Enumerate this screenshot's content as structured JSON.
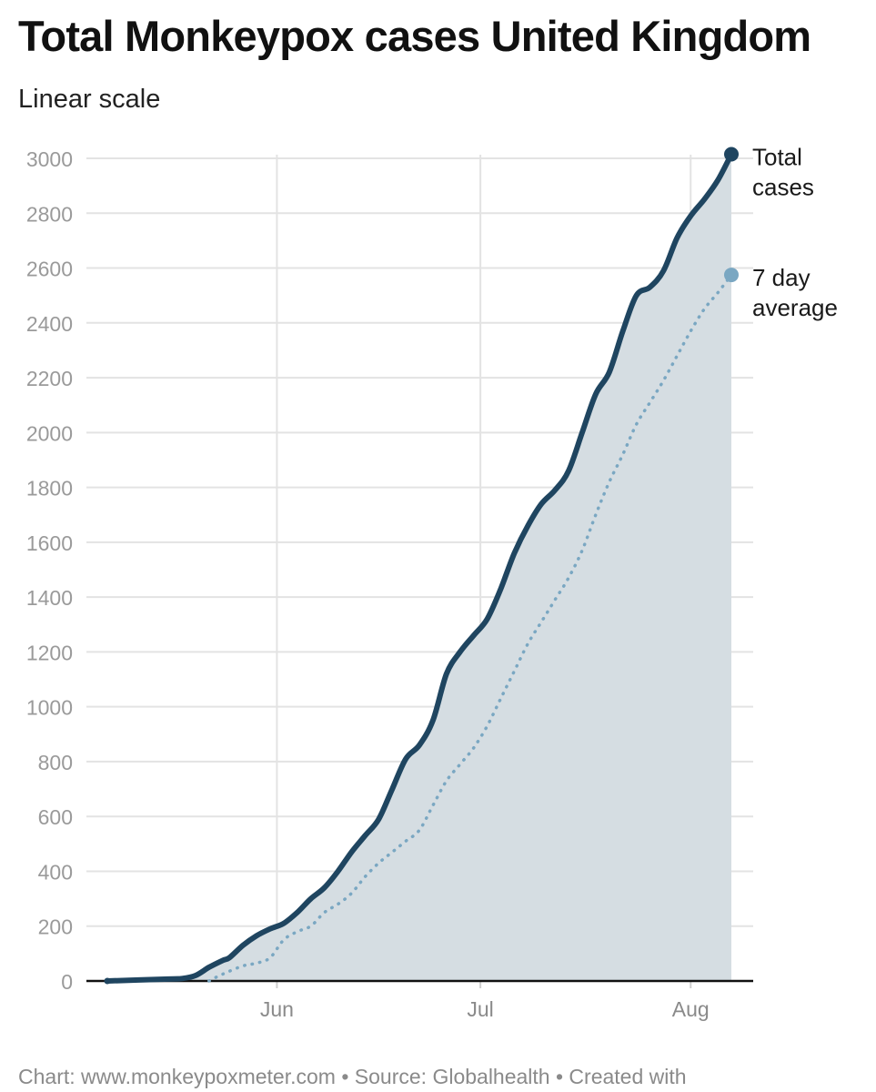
{
  "header": {
    "title": "Total Monkeypox cases United Kingdom",
    "subtitle": "Linear scale"
  },
  "footer": {
    "credit": "Chart: www.monkeypoxmeter.com • Source: Globalhealth • Created with"
  },
  "colors": {
    "total_line": "#1f4560",
    "average_line": "#7aa7c2",
    "area_fill": "#d5dde2",
    "grid": "#e3e3e3",
    "axis": "#111111"
  },
  "chart_data": {
    "type": "area",
    "title": "Total Monkeypox cases United Kingdom",
    "subtitle": "Linear scale",
    "x_axis": {
      "type": "date",
      "range": [
        "2022-05-07",
        "2022-08-12"
      ],
      "ticks": [
        {
          "date": "2022-06-01",
          "label": "Jun"
        },
        {
          "date": "2022-07-01",
          "label": "Jul"
        },
        {
          "date": "2022-08-01",
          "label": "Aug"
        }
      ]
    },
    "y_axis": {
      "range": [
        0,
        3000
      ],
      "ticks": [
        0,
        200,
        400,
        600,
        800,
        1000,
        1200,
        1400,
        1600,
        1800,
        2000,
        2200,
        2400,
        2600,
        2800,
        3000
      ]
    },
    "grid": true,
    "series": [
      {
        "name": "Total cases",
        "label_lines": [
          "Total",
          "cases"
        ],
        "style": "solid",
        "filled": true,
        "points": [
          [
            "2022-05-07",
            0
          ],
          [
            "2022-05-16",
            7
          ],
          [
            "2022-05-18",
            9
          ],
          [
            "2022-05-20",
            20
          ],
          [
            "2022-05-22",
            50
          ],
          [
            "2022-05-24",
            75
          ],
          [
            "2022-05-25",
            85
          ],
          [
            "2022-05-27",
            130
          ],
          [
            "2022-05-29",
            165
          ],
          [
            "2022-05-31",
            190
          ],
          [
            "2022-06-02",
            210
          ],
          [
            "2022-06-04",
            250
          ],
          [
            "2022-06-06",
            300
          ],
          [
            "2022-06-08",
            340
          ],
          [
            "2022-06-10",
            400
          ],
          [
            "2022-06-12",
            470
          ],
          [
            "2022-06-14",
            530
          ],
          [
            "2022-06-16",
            590
          ],
          [
            "2022-06-18",
            700
          ],
          [
            "2022-06-20",
            810
          ],
          [
            "2022-06-22",
            860
          ],
          [
            "2022-06-24",
            950
          ],
          [
            "2022-06-26",
            1120
          ],
          [
            "2022-06-28",
            1200
          ],
          [
            "2022-06-30",
            1260
          ],
          [
            "2022-07-02",
            1320
          ],
          [
            "2022-07-04",
            1430
          ],
          [
            "2022-07-06",
            1560
          ],
          [
            "2022-07-08",
            1660
          ],
          [
            "2022-07-10",
            1740
          ],
          [
            "2022-07-12",
            1790
          ],
          [
            "2022-07-14",
            1860
          ],
          [
            "2022-07-16",
            2000
          ],
          [
            "2022-07-18",
            2140
          ],
          [
            "2022-07-20",
            2220
          ],
          [
            "2022-07-22",
            2370
          ],
          [
            "2022-07-24",
            2500
          ],
          [
            "2022-07-26",
            2530
          ],
          [
            "2022-07-28",
            2590
          ],
          [
            "2022-07-30",
            2710
          ],
          [
            "2022-08-01",
            2790
          ],
          [
            "2022-08-03",
            2850
          ],
          [
            "2022-08-05",
            2920
          ],
          [
            "2022-08-07",
            3015
          ]
        ]
      },
      {
        "name": "7 day average",
        "label_lines": [
          "7 day",
          "average"
        ],
        "style": "dotted",
        "filled": false,
        "points": [
          [
            "2022-05-22",
            0
          ],
          [
            "2022-05-24",
            25
          ],
          [
            "2022-05-27",
            55
          ],
          [
            "2022-05-29",
            65
          ],
          [
            "2022-05-31",
            85
          ],
          [
            "2022-06-02",
            150
          ],
          [
            "2022-06-04",
            180
          ],
          [
            "2022-06-06",
            200
          ],
          [
            "2022-06-08",
            250
          ],
          [
            "2022-06-10",
            280
          ],
          [
            "2022-06-12",
            320
          ],
          [
            "2022-06-14",
            380
          ],
          [
            "2022-06-16",
            430
          ],
          [
            "2022-06-18",
            470
          ],
          [
            "2022-06-20",
            510
          ],
          [
            "2022-06-22",
            550
          ],
          [
            "2022-06-24",
            640
          ],
          [
            "2022-06-26",
            730
          ],
          [
            "2022-06-28",
            790
          ],
          [
            "2022-06-30",
            850
          ],
          [
            "2022-07-02",
            930
          ],
          [
            "2022-07-04",
            1030
          ],
          [
            "2022-07-06",
            1130
          ],
          [
            "2022-07-08",
            1230
          ],
          [
            "2022-07-10",
            1310
          ],
          [
            "2022-07-12",
            1390
          ],
          [
            "2022-07-14",
            1470
          ],
          [
            "2022-07-16",
            1570
          ],
          [
            "2022-07-18",
            1700
          ],
          [
            "2022-07-20",
            1820
          ],
          [
            "2022-07-22",
            1920
          ],
          [
            "2022-07-24",
            2030
          ],
          [
            "2022-07-26",
            2110
          ],
          [
            "2022-07-28",
            2190
          ],
          [
            "2022-07-30",
            2280
          ],
          [
            "2022-08-01",
            2370
          ],
          [
            "2022-08-03",
            2450
          ],
          [
            "2022-08-05",
            2510
          ],
          [
            "2022-08-07",
            2575
          ]
        ]
      }
    ]
  }
}
